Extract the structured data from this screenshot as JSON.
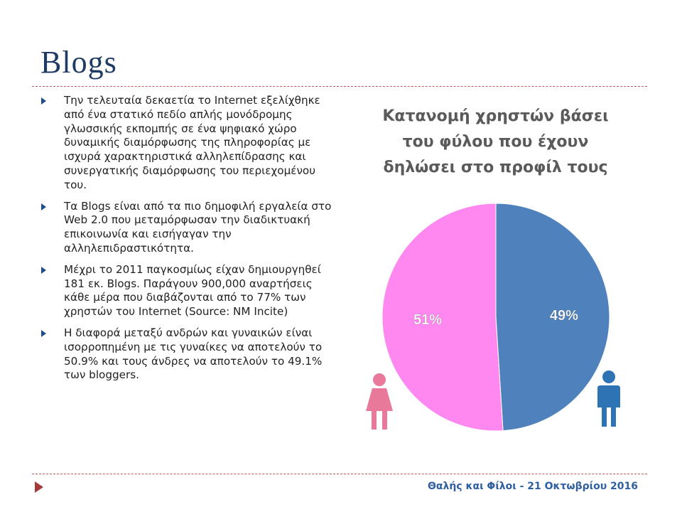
{
  "slide": {
    "title": "Blogs",
    "bullets": [
      "Την τελευταία δεκαετία το Internet εξελίχθηκε από ένα στατικό πεδίο απλής μονόδρομης γλωσσικής εκπομπής σε ένα ψηφιακό χώρο δυναμικής διαμόρφωσης της πληροφορίας με ισχυρά χαρακτηριστικά αλληλεπίδρασης και συνεργατικής διαμόρφωσης του περιεχομένου του.",
      "Τα Blogs είναι από τα πιο δημοφιλή εργαλεία στο Web 2.0 που μεταμόρφωσαν την διαδικτυακή επικοινωνία και εισήγαγαν την αλληλεπιδραστικότητα.",
      "Μέχρι το 2011 παγκοσμίως είχαν δημιουργηθεί 181 εκ. Blogs. Παράγουν 900,000 αναρτήσεις κάθε μέρα που διαβάζονται από το 77% των χρηστών του Internet (Source: NM Incite)",
      "Η διαφορά μεταξύ ανδρών και γυναικών είναι ισορροπημένη με τις γυναίκες να αποτελούν το 50.9% και τους άνδρες να αποτελούν το 49.1% των bloggers."
    ],
    "footer": "Θαλής και Φίλοι - 21 Οκτωβρίου 2016"
  },
  "chart_data": {
    "type": "pie",
    "title": "Κατανομή χρηστών βάσει του φύλου που έχουν δηλώσει στο προφίλ τους",
    "slices": [
      {
        "value": 49,
        "label": "49%",
        "color": "#4f81bd"
      },
      {
        "value": 51,
        "label": "51%",
        "color": "#ff88f0"
      }
    ]
  },
  "icons": {
    "female": {
      "name": "female-icon",
      "color": "#e8799a"
    },
    "male": {
      "name": "male-icon",
      "color": "#2e74b5"
    }
  }
}
